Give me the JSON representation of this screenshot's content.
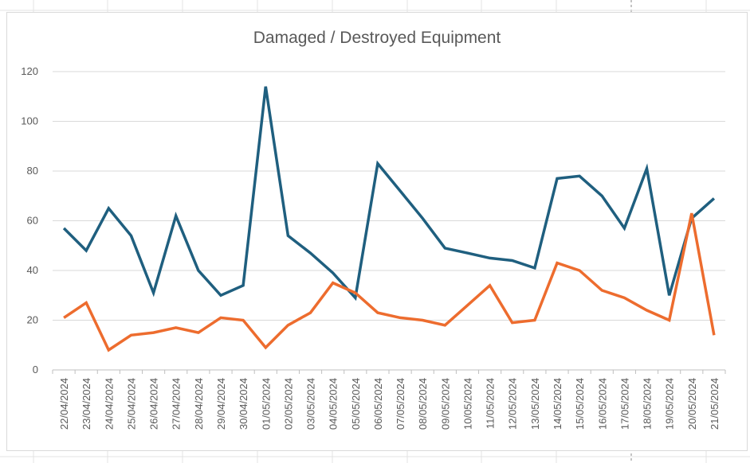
{
  "chart_data": {
    "type": "line",
    "title": "Damaged / Destroyed Equipment",
    "xlabel": "",
    "ylabel": "",
    "ylim": [
      0,
      120
    ],
    "yticks": [
      0,
      20,
      40,
      60,
      80,
      100,
      120
    ],
    "grid": true,
    "legend": "none",
    "categories": [
      "22/04/2024",
      "23/04/2024",
      "24/04/2024",
      "25/04/2024",
      "26/04/2024",
      "27/04/2024",
      "28/04/2024",
      "29/04/2024",
      "30/04/2024",
      "01/05/2024",
      "02/05/2024",
      "03/05/2024",
      "04/05/2024",
      "05/05/2024",
      "06/05/2024",
      "07/05/2024",
      "08/05/2024",
      "09/05/2024",
      "10/05/2024",
      "11/05/2024",
      "12/05/2024",
      "13/05/2024",
      "14/05/2024",
      "15/05/2024",
      "16/05/2024",
      "17/05/2024",
      "18/05/2024",
      "19/05/2024",
      "20/05/2024",
      "21/05/2024"
    ],
    "series": [
      {
        "color": "#1f5f7f",
        "values": [
          57,
          48,
          65,
          54,
          31,
          62,
          40,
          30,
          34,
          114,
          54,
          47,
          39,
          29,
          83,
          72,
          61,
          49,
          47,
          45,
          44,
          41,
          77,
          78,
          70,
          57,
          81,
          30,
          61,
          69
        ]
      },
      {
        "color": "#ed6c2e",
        "values": [
          21,
          27,
          8,
          14,
          15,
          17,
          15,
          21,
          20,
          9,
          18,
          23,
          35,
          31,
          23,
          21,
          20,
          18,
          26,
          34,
          19,
          20,
          43,
          40,
          32,
          29,
          24,
          20,
          63,
          14
        ]
      }
    ]
  }
}
